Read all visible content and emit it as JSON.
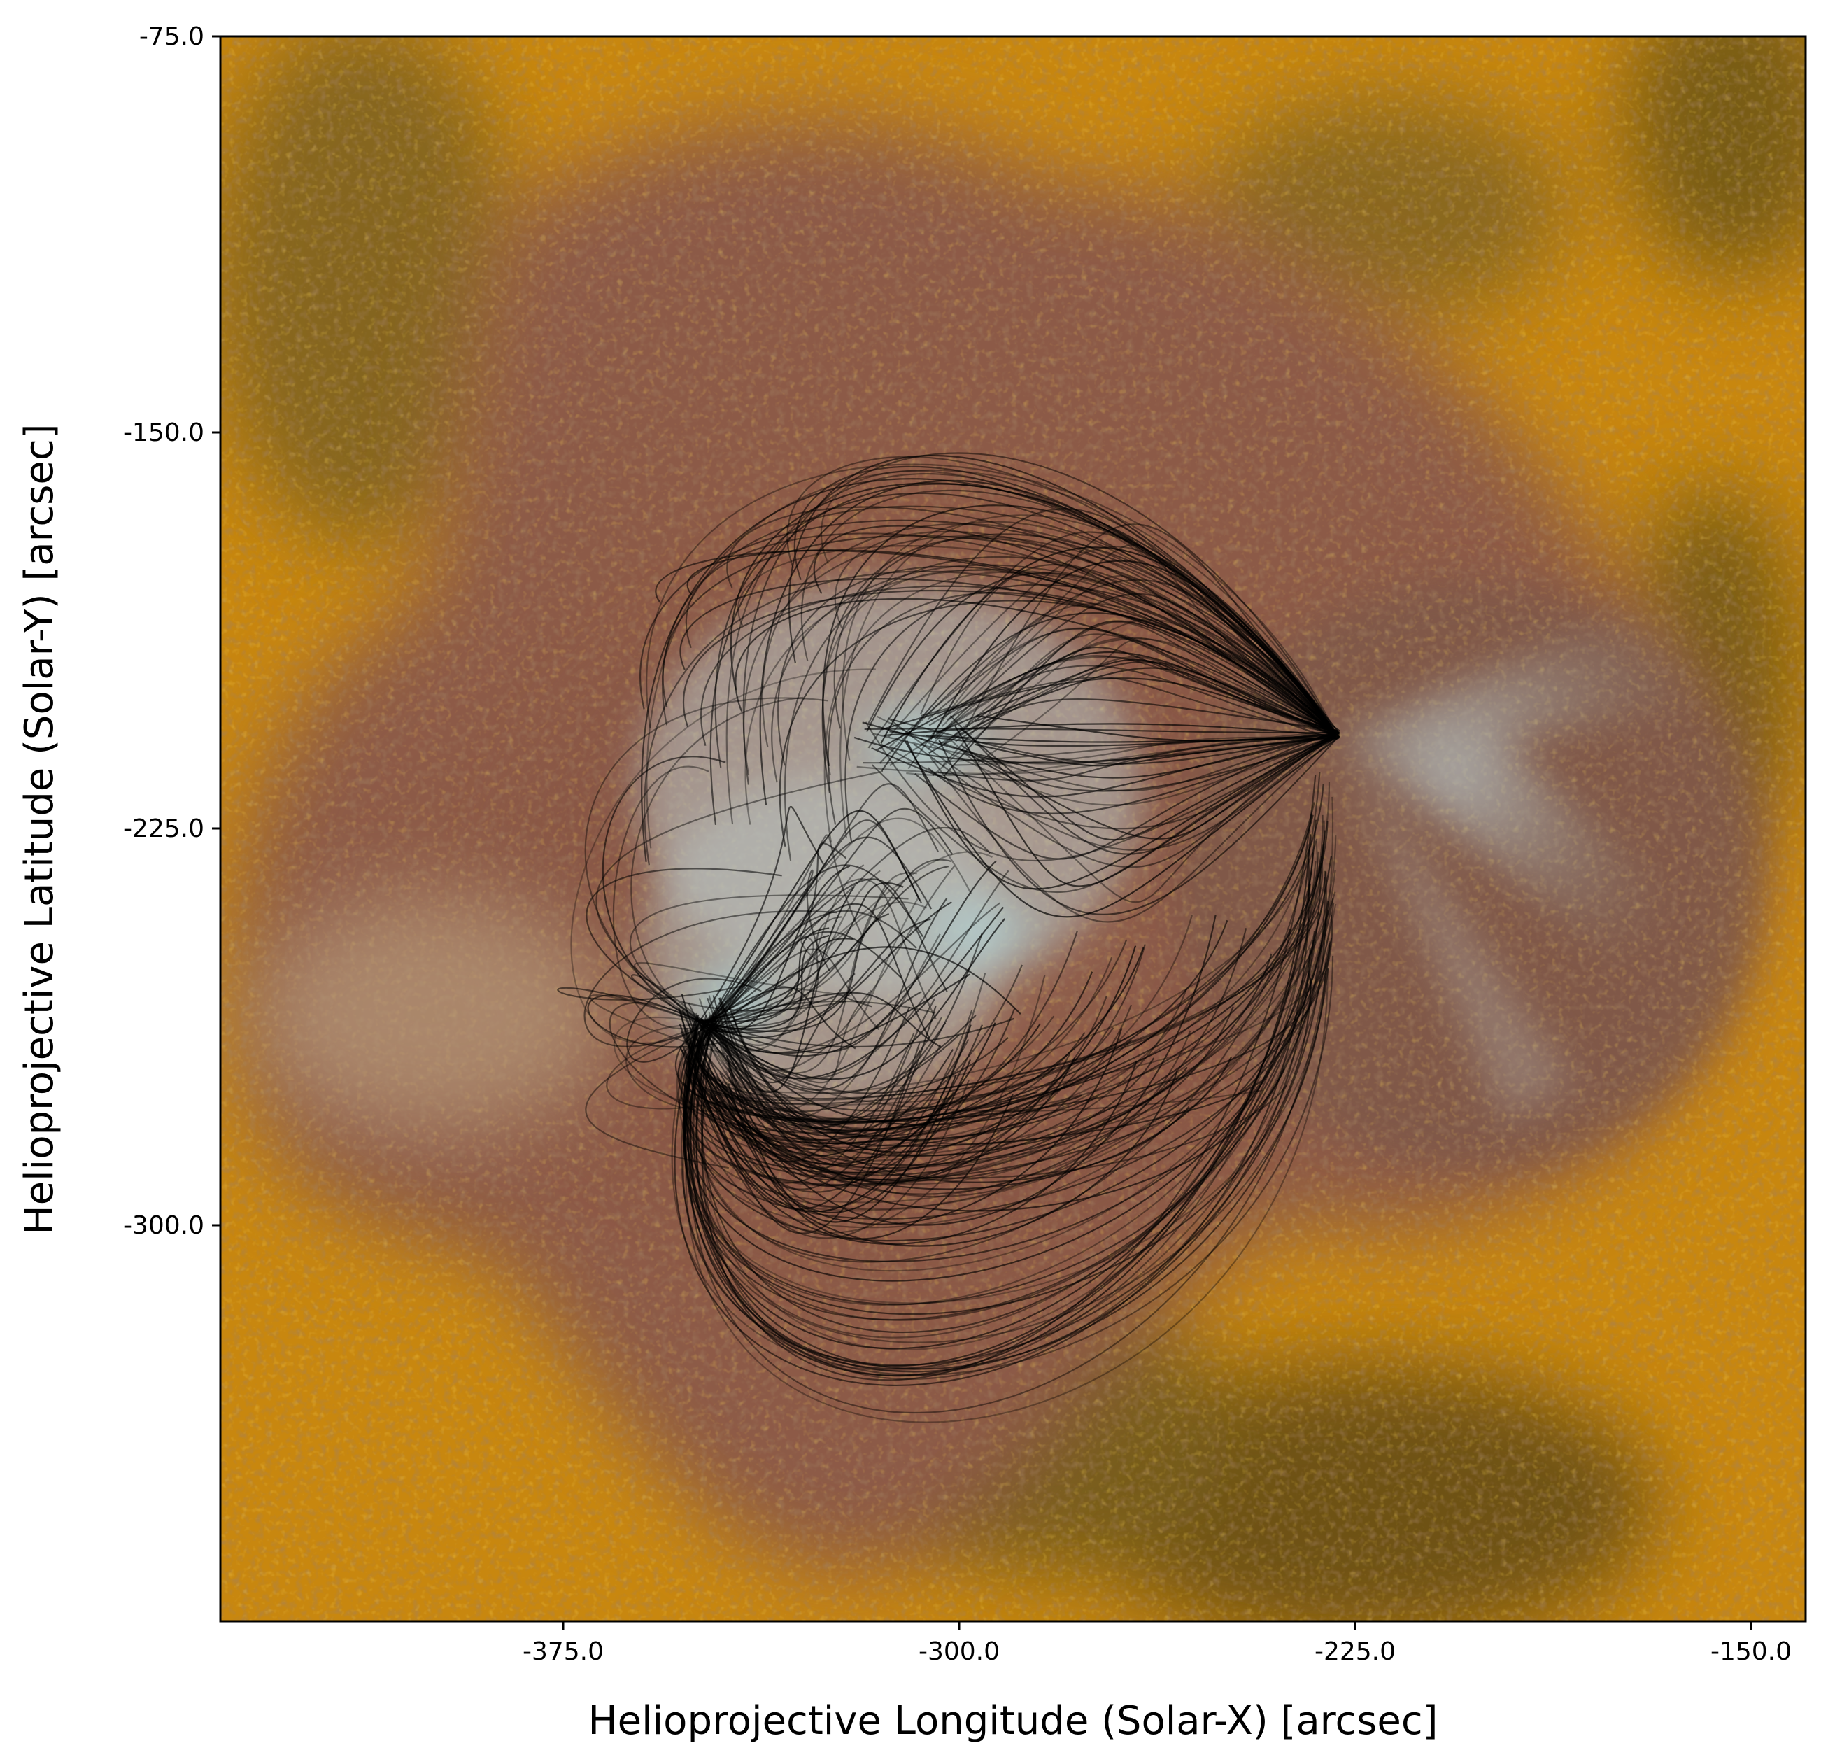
{
  "figure": {
    "x_axis_label": "Helioprojective Longitude (Solar-X) [arcsec]",
    "y_axis_label": "Helioprojective Latitude (Solar-Y) [arcsec]",
    "x_ticks": [
      "-375.0",
      "-300.0",
      "-225.0",
      "-150.0"
    ],
    "y_ticks": [
      "-75.0",
      "-150.0",
      "-225.0",
      "-300.0"
    ]
  },
  "image": {
    "subject": "solar-active-region-with-magnetic-field-lines",
    "colors": {
      "bright_core": "#bfe8ee",
      "plage_brown": "#8a5a48",
      "warm_orange": "#d4900e",
      "dark_olive": "#5d4a1a",
      "field_lines": "#000000"
    }
  }
}
